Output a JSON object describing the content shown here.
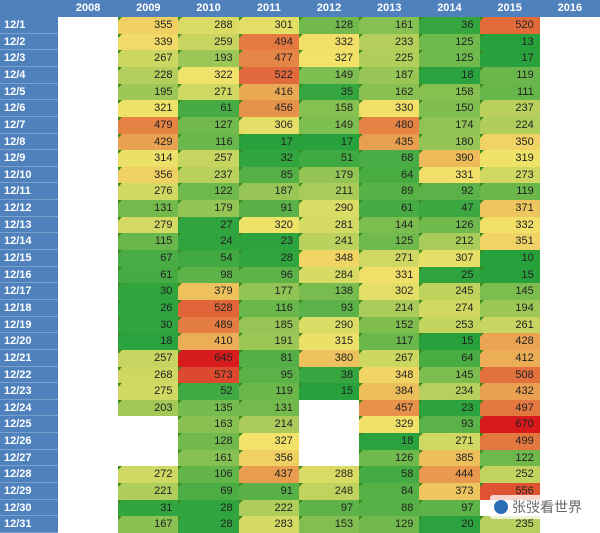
{
  "years": [
    "2008",
    "2009",
    "2010",
    "2011",
    "2012",
    "2013",
    "2014",
    "2015",
    "2016"
  ],
  "rows": [
    {
      "date": "12/1",
      "values": [
        null,
        355,
        288,
        301,
        128,
        161,
        36,
        520,
        null
      ]
    },
    {
      "date": "12/2",
      "values": [
        null,
        339,
        259,
        494,
        332,
        233,
        125,
        13,
        null
      ]
    },
    {
      "date": "12/3",
      "values": [
        null,
        267,
        193,
        477,
        327,
        225,
        125,
        17,
        null
      ]
    },
    {
      "date": "12/4",
      "values": [
        null,
        228,
        322,
        522,
        149,
        187,
        18,
        119,
        null
      ]
    },
    {
      "date": "12/5",
      "values": [
        null,
        195,
        271,
        416,
        35,
        162,
        158,
        111,
        null
      ]
    },
    {
      "date": "12/6",
      "values": [
        null,
        321,
        61,
        456,
        158,
        330,
        150,
        237,
        null
      ]
    },
    {
      "date": "12/7",
      "values": [
        null,
        479,
        127,
        306,
        149,
        480,
        174,
        224,
        null
      ]
    },
    {
      "date": "12/8",
      "values": [
        null,
        429,
        116,
        17,
        17,
        435,
        180,
        350,
        null
      ]
    },
    {
      "date": "12/9",
      "values": [
        null,
        314,
        257,
        32,
        51,
        68,
        390,
        319,
        null
      ]
    },
    {
      "date": "12/10",
      "values": [
        null,
        356,
        237,
        85,
        179,
        64,
        331,
        273,
        null
      ]
    },
    {
      "date": "12/11",
      "values": [
        null,
        276,
        122,
        187,
        211,
        89,
        92,
        119,
        null
      ]
    },
    {
      "date": "12/12",
      "values": [
        null,
        131,
        179,
        91,
        290,
        61,
        47,
        371,
        null
      ]
    },
    {
      "date": "12/13",
      "values": [
        null,
        279,
        27,
        320,
        281,
        144,
        126,
        332,
        null
      ]
    },
    {
      "date": "12/14",
      "values": [
        null,
        115,
        24,
        23,
        241,
        125,
        212,
        351,
        null
      ]
    },
    {
      "date": "12/15",
      "values": [
        null,
        67,
        54,
        28,
        348,
        271,
        307,
        10,
        null
      ]
    },
    {
      "date": "12/16",
      "values": [
        null,
        61,
        98,
        96,
        284,
        331,
        25,
        15,
        null
      ]
    },
    {
      "date": "12/17",
      "values": [
        null,
        30,
        379,
        177,
        138,
        302,
        245,
        145,
        null
      ]
    },
    {
      "date": "12/18",
      "values": [
        null,
        26,
        528,
        116,
        93,
        214,
        274,
        194,
        null
      ]
    },
    {
      "date": "12/19",
      "values": [
        null,
        30,
        489,
        185,
        290,
        152,
        253,
        261,
        null
      ]
    },
    {
      "date": "12/20",
      "values": [
        null,
        18,
        410,
        191,
        315,
        117,
        15,
        428,
        null
      ]
    },
    {
      "date": "12/21",
      "values": [
        null,
        257,
        645,
        81,
        380,
        267,
        64,
        412,
        null
      ]
    },
    {
      "date": "12/22",
      "values": [
        null,
        268,
        573,
        95,
        38,
        348,
        145,
        508,
        null
      ]
    },
    {
      "date": "12/23",
      "values": [
        null,
        275,
        52,
        119,
        15,
        384,
        234,
        432,
        null
      ]
    },
    {
      "date": "12/24",
      "values": [
        null,
        203,
        135,
        131,
        null,
        457,
        23,
        497,
        null
      ]
    },
    {
      "date": "12/25",
      "values": [
        null,
        null,
        163,
        214,
        null,
        329,
        93,
        670,
        null
      ]
    },
    {
      "date": "12/26",
      "values": [
        null,
        null,
        128,
        327,
        null,
        18,
        271,
        499,
        null
      ]
    },
    {
      "date": "12/27",
      "values": [
        null,
        null,
        161,
        356,
        null,
        126,
        385,
        122,
        null
      ]
    },
    {
      "date": "12/28",
      "values": [
        null,
        272,
        106,
        437,
        288,
        58,
        444,
        252,
        null
      ]
    },
    {
      "date": "12/29",
      "values": [
        null,
        221,
        69,
        91,
        248,
        84,
        373,
        556,
        null
      ]
    },
    {
      "date": "12/30",
      "values": [
        null,
        31,
        28,
        222,
        97,
        88,
        97,
        null,
        null
      ]
    },
    {
      "date": "12/31",
      "values": [
        null,
        167,
        28,
        283,
        153,
        129,
        20,
        235,
        null
      ]
    }
  ],
  "watermark": "张弢看世界",
  "colors": {
    "header_bg": "#4f81bd",
    "low": "#1e9e3a",
    "mid": "#f2e36a",
    "high": "#d7191c"
  }
}
